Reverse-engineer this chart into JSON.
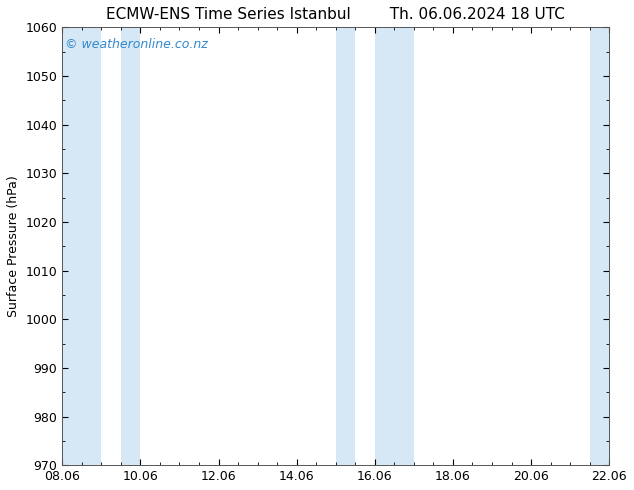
{
  "title_left": "ECMW-ENS Time Series Istanbul",
  "title_right": "Th. 06.06.2024 18 UTC",
  "ylabel": "Surface Pressure (hPa)",
  "ylim": [
    970,
    1060
  ],
  "yticks": [
    970,
    980,
    990,
    1000,
    1010,
    1020,
    1030,
    1040,
    1050,
    1060
  ],
  "xlim": [
    0,
    14
  ],
  "xtick_positions": [
    0,
    2,
    4,
    6,
    8,
    10,
    12,
    14
  ],
  "xtick_labels": [
    "08.06",
    "10.06",
    "12.06",
    "14.06",
    "16.06",
    "18.06",
    "20.06",
    "22.06"
  ],
  "shaded_bands": [
    {
      "xmin": 0.0,
      "xmax": 1.0
    },
    {
      "xmin": 1.5,
      "xmax": 2.0
    },
    {
      "xmin": 7.0,
      "xmax": 7.5
    },
    {
      "xmin": 8.0,
      "xmax": 9.0
    },
    {
      "xmin": 13.5,
      "xmax": 14.0
    }
  ],
  "band_color": "#d6e8f5",
  "background_color": "#ffffff",
  "watermark_text": "© weatheronline.co.nz",
  "watermark_color": "#3388cc",
  "title_fontsize": 11,
  "label_fontsize": 9,
  "tick_fontsize": 9,
  "watermark_fontsize": 9,
  "figsize": [
    6.34,
    4.9
  ],
  "dpi": 100
}
